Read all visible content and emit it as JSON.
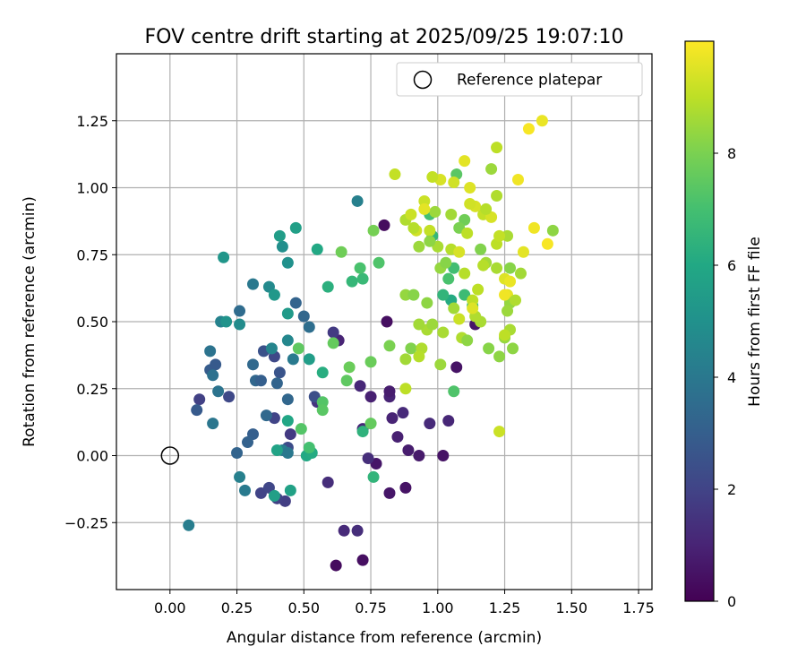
{
  "chart_data": {
    "type": "scatter",
    "title": "FOV centre drift starting at 2025/09/25 19:07:10",
    "xlabel": "Angular distance from reference (arcmin)",
    "ylabel": "Rotation from reference (arcmin)",
    "xlim": [
      -0.2,
      1.8
    ],
    "ylim": [
      -0.5,
      1.5
    ],
    "xticks": [
      0.0,
      0.25,
      0.5,
      0.75,
      1.0,
      1.25,
      1.5,
      1.75
    ],
    "yticks": [
      -0.25,
      0.0,
      0.25,
      0.5,
      0.75,
      1.0,
      1.25
    ],
    "xtick_labels": [
      "0.00",
      "0.25",
      "0.50",
      "0.75",
      "1.00",
      "1.25",
      "1.50",
      "1.75"
    ],
    "ytick_labels": [
      "−0.25",
      "0.00",
      "0.25",
      "0.50",
      "0.75",
      "1.00",
      "1.25"
    ],
    "grid": true,
    "legend": {
      "position": "top-right",
      "label": "Reference platepar",
      "marker": "open-circle"
    },
    "reference_point": {
      "x": 0.0,
      "y": 0.0
    },
    "colorbar": {
      "label": "Hours from first FF file",
      "colormap": "viridis",
      "range": [
        0,
        10
      ],
      "ticks": [
        0,
        2,
        4,
        6,
        8
      ],
      "tick_labels": [
        "0",
        "2",
        "4",
        "6",
        "8"
      ]
    },
    "points": [
      {
        "x": 0.62,
        "y": -0.41,
        "h": 0.3
      },
      {
        "x": 0.72,
        "y": -0.39,
        "h": 0.4
      },
      {
        "x": 0.88,
        "y": -0.12,
        "h": 0.5
      },
      {
        "x": 0.82,
        "y": -0.14,
        "h": 0.6
      },
      {
        "x": 0.93,
        "y": 0.0,
        "h": 0.7
      },
      {
        "x": 1.02,
        "y": 0.0,
        "h": 0.5
      },
      {
        "x": 0.77,
        "y": -0.03,
        "h": 0.6
      },
      {
        "x": 0.89,
        "y": 0.02,
        "h": 0.8
      },
      {
        "x": 0.85,
        "y": 0.07,
        "h": 0.9
      },
      {
        "x": 0.83,
        "y": 0.14,
        "h": 1.0
      },
      {
        "x": 0.97,
        "y": 0.12,
        "h": 1.2
      },
      {
        "x": 1.04,
        "y": 0.13,
        "h": 1.1
      },
      {
        "x": 0.87,
        "y": 0.16,
        "h": 1.2
      },
      {
        "x": 0.82,
        "y": 0.22,
        "h": 1.0
      },
      {
        "x": 0.75,
        "y": 0.22,
        "h": 0.9
      },
      {
        "x": 0.71,
        "y": 0.26,
        "h": 1.1
      },
      {
        "x": 0.82,
        "y": 0.24,
        "h": 0.8
      },
      {
        "x": 0.81,
        "y": 0.5,
        "h": 0.4
      },
      {
        "x": 0.8,
        "y": 0.86,
        "h": 0.3
      },
      {
        "x": 1.07,
        "y": 0.33,
        "h": 0.5
      },
      {
        "x": 1.14,
        "y": 0.49,
        "h": 0.6
      },
      {
        "x": 0.72,
        "y": 0.1,
        "h": 1.1
      },
      {
        "x": 0.74,
        "y": -0.01,
        "h": 1.3
      },
      {
        "x": 0.7,
        "y": -0.28,
        "h": 1.3
      },
      {
        "x": 0.65,
        "y": -0.28,
        "h": 1.2
      },
      {
        "x": 0.59,
        "y": -0.1,
        "h": 1.3
      },
      {
        "x": 0.63,
        "y": 0.43,
        "h": 1.0
      },
      {
        "x": 0.55,
        "y": 0.2,
        "h": 1.5
      },
      {
        "x": 0.61,
        "y": 0.46,
        "h": 1.7
      },
      {
        "x": 0.11,
        "y": 0.21,
        "h": 1.9
      },
      {
        "x": 0.43,
        "y": -0.17,
        "h": 1.8
      },
      {
        "x": 0.4,
        "y": -0.16,
        "h": 1.9
      },
      {
        "x": 0.34,
        "y": -0.14,
        "h": 2.0
      },
      {
        "x": 0.37,
        "y": -0.12,
        "h": 2.1
      },
      {
        "x": 0.45,
        "y": 0.08,
        "h": 1.7
      },
      {
        "x": 0.39,
        "y": 0.14,
        "h": 2.0
      },
      {
        "x": 0.22,
        "y": 0.22,
        "h": 2.2
      },
      {
        "x": 0.44,
        "y": 0.03,
        "h": 2.3
      },
      {
        "x": 0.39,
        "y": 0.37,
        "h": 2.2
      },
      {
        "x": 0.54,
        "y": 0.22,
        "h": 2.4
      },
      {
        "x": 0.35,
        "y": 0.39,
        "h": 2.5
      },
      {
        "x": 0.41,
        "y": 0.31,
        "h": 2.6
      },
      {
        "x": 0.1,
        "y": 0.17,
        "h": 2.8
      },
      {
        "x": 0.15,
        "y": 0.32,
        "h": 2.9
      },
      {
        "x": 0.17,
        "y": 0.34,
        "h": 2.8
      },
      {
        "x": 0.31,
        "y": 0.08,
        "h": 3.0
      },
      {
        "x": 0.29,
        "y": 0.05,
        "h": 3.1
      },
      {
        "x": 0.25,
        "y": 0.01,
        "h": 3.2
      },
      {
        "x": 0.32,
        "y": 0.28,
        "h": 3.3
      },
      {
        "x": 0.34,
        "y": 0.28,
        "h": 3.0
      },
      {
        "x": 0.36,
        "y": 0.15,
        "h": 3.4
      },
      {
        "x": 0.4,
        "y": 0.27,
        "h": 3.2
      },
      {
        "x": 0.44,
        "y": 0.21,
        "h": 3.3
      },
      {
        "x": 0.31,
        "y": 0.34,
        "h": 3.4
      },
      {
        "x": 0.26,
        "y": 0.54,
        "h": 3.5
      },
      {
        "x": 0.5,
        "y": 0.52,
        "h": 3.3
      },
      {
        "x": 0.47,
        "y": 0.57,
        "h": 3.2
      },
      {
        "x": 0.52,
        "y": 0.48,
        "h": 3.6
      },
      {
        "x": 0.16,
        "y": 0.3,
        "h": 3.7
      },
      {
        "x": 0.15,
        "y": 0.39,
        "h": 3.8
      },
      {
        "x": 0.16,
        "y": 0.12,
        "h": 3.9
      },
      {
        "x": 0.18,
        "y": 0.24,
        "h": 3.8
      },
      {
        "x": 0.31,
        "y": 0.64,
        "h": 4.0
      },
      {
        "x": 0.46,
        "y": 0.36,
        "h": 4.1
      },
      {
        "x": 0.42,
        "y": 0.02,
        "h": 4.2
      },
      {
        "x": 0.44,
        "y": 0.01,
        "h": 4.0
      },
      {
        "x": 0.28,
        "y": -0.13,
        "h": 4.1
      },
      {
        "x": 0.26,
        "y": -0.08,
        "h": 4.3
      },
      {
        "x": 0.07,
        "y": -0.26,
        "h": 4.2
      },
      {
        "x": 0.19,
        "y": 0.5,
        "h": 4.4
      },
      {
        "x": 0.7,
        "y": 0.95,
        "h": 4.3
      },
      {
        "x": 0.38,
        "y": 0.4,
        "h": 4.5
      },
      {
        "x": 0.44,
        "y": 0.43,
        "h": 4.6
      },
      {
        "x": 0.37,
        "y": 0.63,
        "h": 4.7
      },
      {
        "x": 0.26,
        "y": 0.49,
        "h": 4.8
      },
      {
        "x": 0.42,
        "y": 0.78,
        "h": 4.9
      },
      {
        "x": 0.44,
        "y": 0.72,
        "h": 5.0
      },
      {
        "x": 0.2,
        "y": 0.74,
        "h": 5.2
      },
      {
        "x": 0.21,
        "y": 0.5,
        "h": 5.1
      },
      {
        "x": 0.39,
        "y": 0.6,
        "h": 5.3
      },
      {
        "x": 0.44,
        "y": 0.53,
        "h": 5.4
      },
      {
        "x": 0.41,
        "y": 0.82,
        "h": 5.5
      },
      {
        "x": 0.47,
        "y": 0.85,
        "h": 5.6
      },
      {
        "x": 0.52,
        "y": 0.36,
        "h": 5.5
      },
      {
        "x": 0.45,
        "y": -0.13,
        "h": 5.7
      },
      {
        "x": 0.39,
        "y": -0.15,
        "h": 5.6
      },
      {
        "x": 0.4,
        "y": 0.02,
        "h": 5.8
      },
      {
        "x": 0.44,
        "y": 0.13,
        "h": 5.9
      },
      {
        "x": 0.51,
        "y": 0.0,
        "h": 6.0
      },
      {
        "x": 0.53,
        "y": 0.01,
        "h": 6.1
      },
      {
        "x": 0.55,
        "y": 0.77,
        "h": 6.0
      },
      {
        "x": 0.57,
        "y": 0.31,
        "h": 6.2
      },
      {
        "x": 0.59,
        "y": 0.63,
        "h": 6.3
      },
      {
        "x": 0.72,
        "y": 0.09,
        "h": 6.4
      },
      {
        "x": 0.76,
        "y": -0.08,
        "h": 6.5
      },
      {
        "x": 0.68,
        "y": 0.65,
        "h": 6.6
      },
      {
        "x": 0.72,
        "y": 0.66,
        "h": 6.7
      },
      {
        "x": 1.05,
        "y": 0.58,
        "h": 6.1
      },
      {
        "x": 1.02,
        "y": 0.6,
        "h": 6.5
      },
      {
        "x": 0.98,
        "y": 0.82,
        "h": 6.6
      },
      {
        "x": 1.1,
        "y": 0.6,
        "h": 6.8
      },
      {
        "x": 1.13,
        "y": 0.56,
        "h": 6.9
      },
      {
        "x": 0.97,
        "y": 0.9,
        "h": 7.0
      },
      {
        "x": 0.71,
        "y": 0.7,
        "h": 7.1
      },
      {
        "x": 0.78,
        "y": 0.72,
        "h": 7.2
      },
      {
        "x": 0.52,
        "y": 0.03,
        "h": 7.0
      },
      {
        "x": 0.57,
        "y": 0.2,
        "h": 7.3
      },
      {
        "x": 0.57,
        "y": 0.17,
        "h": 7.4
      },
      {
        "x": 0.49,
        "y": 0.1,
        "h": 7.3
      },
      {
        "x": 0.48,
        "y": 0.4,
        "h": 7.5
      },
      {
        "x": 0.61,
        "y": 0.42,
        "h": 7.6
      },
      {
        "x": 0.75,
        "y": 0.35,
        "h": 7.7
      },
      {
        "x": 0.75,
        "y": 0.12,
        "h": 7.6
      },
      {
        "x": 0.64,
        "y": 0.76,
        "h": 7.8
      },
      {
        "x": 0.76,
        "y": 0.84,
        "h": 7.9
      },
      {
        "x": 0.82,
        "y": 0.41,
        "h": 8.0
      },
      {
        "x": 0.66,
        "y": 0.28,
        "h": 7.5
      },
      {
        "x": 0.67,
        "y": 0.33,
        "h": 7.7
      },
      {
        "x": 1.06,
        "y": 0.24,
        "h": 7.2
      },
      {
        "x": 1.06,
        "y": 0.7,
        "h": 6.9
      },
      {
        "x": 1.04,
        "y": 0.66,
        "h": 7.1
      },
      {
        "x": 1.07,
        "y": 1.05,
        "h": 7.4
      },
      {
        "x": 1.1,
        "y": 0.88,
        "h": 7.8
      },
      {
        "x": 1.08,
        "y": 0.85,
        "h": 8.0
      },
      {
        "x": 1.16,
        "y": 0.77,
        "h": 8.1
      },
      {
        "x": 1.19,
        "y": 0.4,
        "h": 8.2
      },
      {
        "x": 1.23,
        "y": 0.37,
        "h": 8.3
      },
      {
        "x": 1.25,
        "y": 0.44,
        "h": 8.4
      },
      {
        "x": 1.27,
        "y": 0.7,
        "h": 8.2
      },
      {
        "x": 1.2,
        "y": 1.07,
        "h": 8.5
      },
      {
        "x": 1.43,
        "y": 0.84,
        "h": 8.3
      },
      {
        "x": 1.31,
        "y": 0.68,
        "h": 8.6
      },
      {
        "x": 1.26,
        "y": 0.82,
        "h": 8.7
      },
      {
        "x": 1.22,
        "y": 1.15,
        "h": 9.0
      },
      {
        "x": 1.23,
        "y": 0.09,
        "h": 9.2
      },
      {
        "x": 0.84,
        "y": 1.05,
        "h": 9.1
      },
      {
        "x": 0.92,
        "y": 0.84,
        "h": 9.3
      },
      {
        "x": 0.95,
        "y": 0.95,
        "h": 9.2
      },
      {
        "x": 1.01,
        "y": 1.03,
        "h": 9.4
      },
      {
        "x": 1.1,
        "y": 1.1,
        "h": 9.6
      },
      {
        "x": 1.3,
        "y": 1.03,
        "h": 9.8
      },
      {
        "x": 1.34,
        "y": 1.22,
        "h": 9.9
      },
      {
        "x": 1.39,
        "y": 1.25,
        "h": 9.7
      },
      {
        "x": 1.36,
        "y": 0.85,
        "h": 9.8
      },
      {
        "x": 1.41,
        "y": 0.79,
        "h": 9.9
      },
      {
        "x": 1.26,
        "y": 0.6,
        "h": 9.6
      },
      {
        "x": 1.25,
        "y": 0.66,
        "h": 9.5
      },
      {
        "x": 1.14,
        "y": 0.93,
        "h": 9.4
      },
      {
        "x": 1.17,
        "y": 0.9,
        "h": 9.1
      },
      {
        "x": 1.11,
        "y": 0.83,
        "h": 9.0
      },
      {
        "x": 1.05,
        "y": 0.77,
        "h": 8.9
      },
      {
        "x": 1.08,
        "y": 0.51,
        "h": 9.2
      },
      {
        "x": 1.13,
        "y": 0.58,
        "h": 9.0
      },
      {
        "x": 1.09,
        "y": 0.44,
        "h": 8.8
      },
      {
        "x": 0.96,
        "y": 0.47,
        "h": 8.7
      },
      {
        "x": 0.93,
        "y": 0.49,
        "h": 8.6
      },
      {
        "x": 0.98,
        "y": 0.49,
        "h": 8.5
      },
      {
        "x": 0.96,
        "y": 0.57,
        "h": 8.3
      },
      {
        "x": 0.88,
        "y": 0.6,
        "h": 8.4
      },
      {
        "x": 0.91,
        "y": 0.6,
        "h": 8.2
      },
      {
        "x": 0.9,
        "y": 0.4,
        "h": 8.1
      },
      {
        "x": 0.88,
        "y": 0.36,
        "h": 8.6
      },
      {
        "x": 0.94,
        "y": 0.4,
        "h": 8.8
      },
      {
        "x": 0.93,
        "y": 0.37,
        "h": 8.9
      },
      {
        "x": 0.88,
        "y": 0.25,
        "h": 9.0
      },
      {
        "x": 1.01,
        "y": 0.34,
        "h": 8.5
      },
      {
        "x": 1.02,
        "y": 0.46,
        "h": 8.7
      },
      {
        "x": 1.11,
        "y": 0.43,
        "h": 8.3
      },
      {
        "x": 0.88,
        "y": 0.88,
        "h": 8.8
      },
      {
        "x": 0.91,
        "y": 0.85,
        "h": 8.9
      },
      {
        "x": 1.0,
        "y": 0.78,
        "h": 8.7
      },
      {
        "x": 0.97,
        "y": 0.84,
        "h": 9.1
      },
      {
        "x": 0.99,
        "y": 0.91,
        "h": 8.5
      },
      {
        "x": 1.01,
        "y": 0.7,
        "h": 8.4
      },
      {
        "x": 1.06,
        "y": 0.55,
        "h": 8.6
      },
      {
        "x": 1.12,
        "y": 0.94,
        "h": 9.3
      },
      {
        "x": 1.2,
        "y": 0.89,
        "h": 9.4
      },
      {
        "x": 1.18,
        "y": 0.92,
        "h": 8.9
      },
      {
        "x": 1.22,
        "y": 0.97,
        "h": 8.8
      },
      {
        "x": 1.22,
        "y": 0.79,
        "h": 9.0
      },
      {
        "x": 1.23,
        "y": 0.82,
        "h": 9.1
      },
      {
        "x": 1.18,
        "y": 0.72,
        "h": 8.6
      },
      {
        "x": 1.22,
        "y": 0.7,
        "h": 8.7
      },
      {
        "x": 1.17,
        "y": 0.71,
        "h": 8.9
      },
      {
        "x": 1.27,
        "y": 0.57,
        "h": 8.4
      },
      {
        "x": 1.26,
        "y": 0.54,
        "h": 8.5
      },
      {
        "x": 1.27,
        "y": 0.47,
        "h": 8.7
      },
      {
        "x": 1.29,
        "y": 0.58,
        "h": 8.8
      },
      {
        "x": 1.25,
        "y": 0.45,
        "h": 9.0
      },
      {
        "x": 1.28,
        "y": 0.4,
        "h": 8.3
      },
      {
        "x": 0.93,
        "y": 0.78,
        "h": 8.5
      },
      {
        "x": 0.97,
        "y": 0.8,
        "h": 8.3
      },
      {
        "x": 1.03,
        "y": 0.72,
        "h": 8.2
      },
      {
        "x": 1.05,
        "y": 0.9,
        "h": 8.6
      },
      {
        "x": 1.1,
        "y": 0.68,
        "h": 8.9
      },
      {
        "x": 1.15,
        "y": 0.62,
        "h": 9.0
      },
      {
        "x": 1.16,
        "y": 0.5,
        "h": 8.7
      },
      {
        "x": 1.14,
        "y": 0.52,
        "h": 8.8
      },
      {
        "x": 0.9,
        "y": 0.9,
        "h": 9.2
      },
      {
        "x": 1.06,
        "y": 1.02,
        "h": 9.3
      },
      {
        "x": 1.12,
        "y": 1.0,
        "h": 9.5
      },
      {
        "x": 0.98,
        "y": 1.04,
        "h": 9.1
      },
      {
        "x": 1.08,
        "y": 0.76,
        "h": 9.4
      },
      {
        "x": 1.32,
        "y": 0.76,
        "h": 9.6
      },
      {
        "x": 1.27,
        "y": 0.65,
        "h": 9.7
      },
      {
        "x": 1.13,
        "y": 0.55,
        "h": 9.5
      },
      {
        "x": 1.25,
        "y": 0.6,
        "h": 9.8
      },
      {
        "x": 0.95,
        "y": 0.92,
        "h": 9.6
      }
    ]
  }
}
